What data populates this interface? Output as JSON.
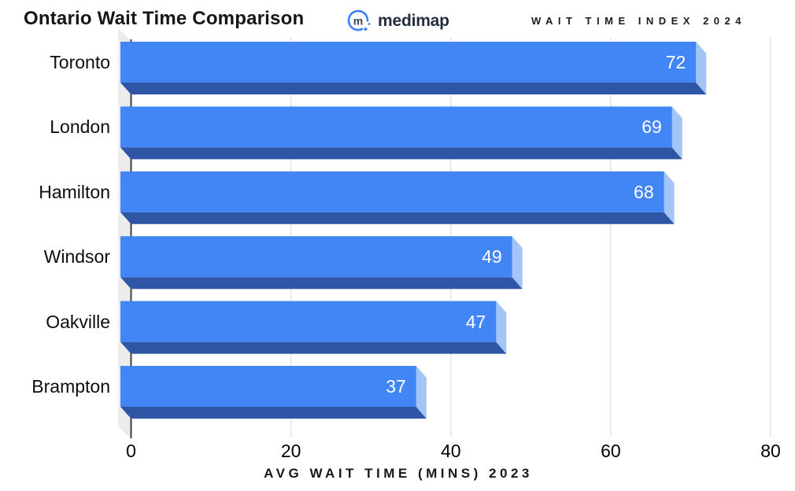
{
  "header": {
    "brand": {
      "wordmark": "medimap",
      "mark_letter": "m",
      "brand_blue": "#3b82f6",
      "wordmark_color": "#232f3e"
    },
    "index_label": "WAIT TIME INDEX 2024"
  },
  "chart_data": {
    "type": "bar",
    "orientation": "horizontal",
    "style": "3d-extruded",
    "title": "Ontario Wait Time Comparison",
    "categories": [
      "Toronto",
      "London",
      "Hamilton",
      "Windsor",
      "Oakville",
      "Brampton"
    ],
    "values": [
      72,
      69,
      68,
      49,
      47,
      37
    ],
    "value_labels_shown": true,
    "xlabel": "AVG WAIT TIME (MINS) 2023",
    "xlim": [
      0,
      80
    ],
    "xticks": [
      0,
      20,
      40,
      60,
      80
    ],
    "grid": true,
    "legend": "none",
    "colors": {
      "bar_front": "#4285f4",
      "bar_bottom": "#2e56a4",
      "bar_side": "#a3c4f7",
      "wall": "#ececec",
      "gridline": "#d7d7d7",
      "axis": "#3f3f3f",
      "value_label": "#ffffff",
      "category_label": "#0d0d0d",
      "background": "#ffffff"
    }
  }
}
